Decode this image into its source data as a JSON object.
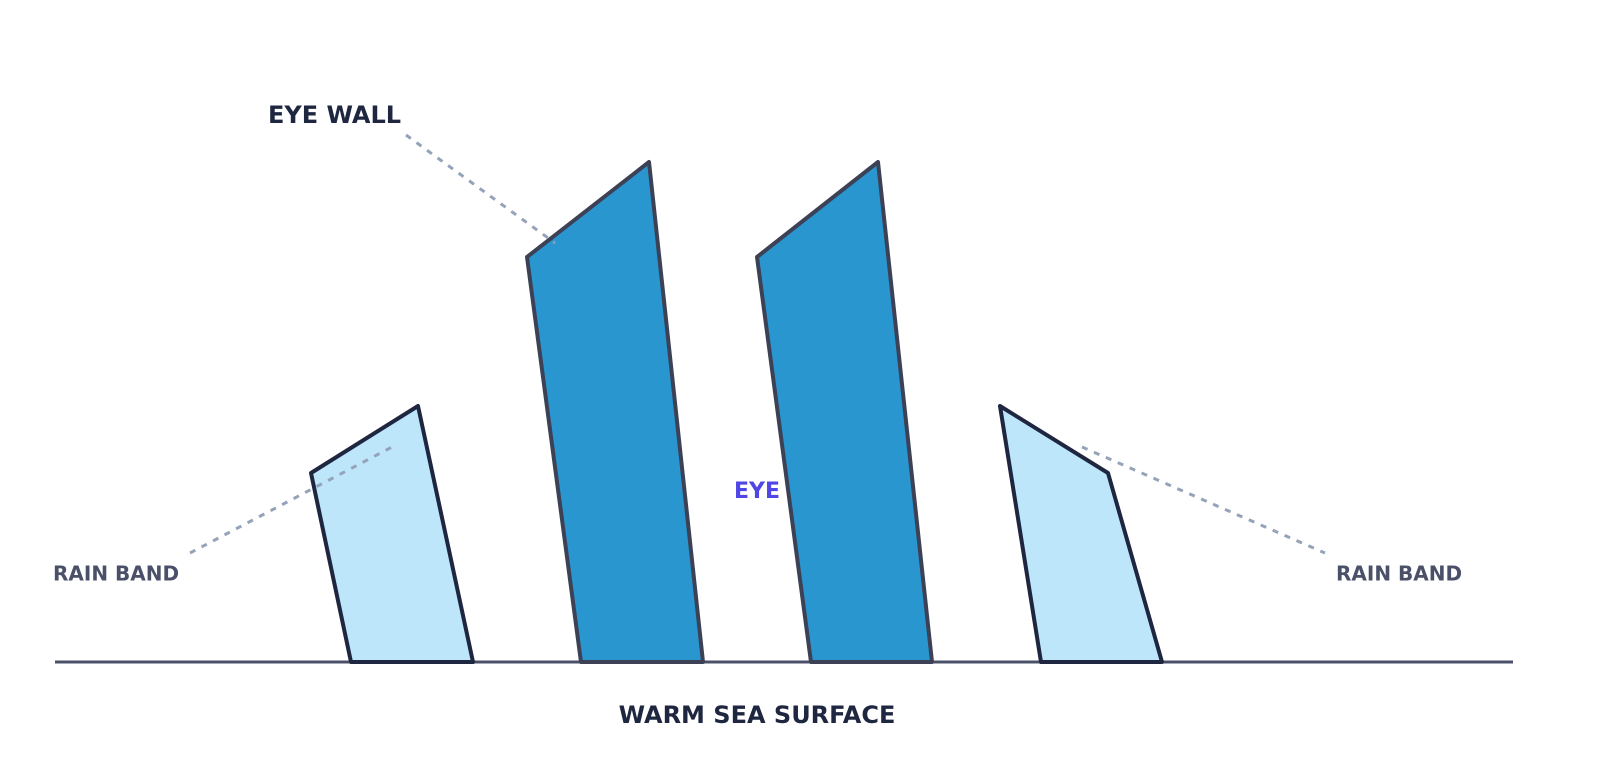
{
  "labels": {
    "eye_wall": "EYE WALL",
    "eye": "EYE",
    "rain_band_left": "RAIN BAND",
    "rain_band_right": "RAIN BAND",
    "sea_surface": "WARM SEA SURFACE"
  }
}
